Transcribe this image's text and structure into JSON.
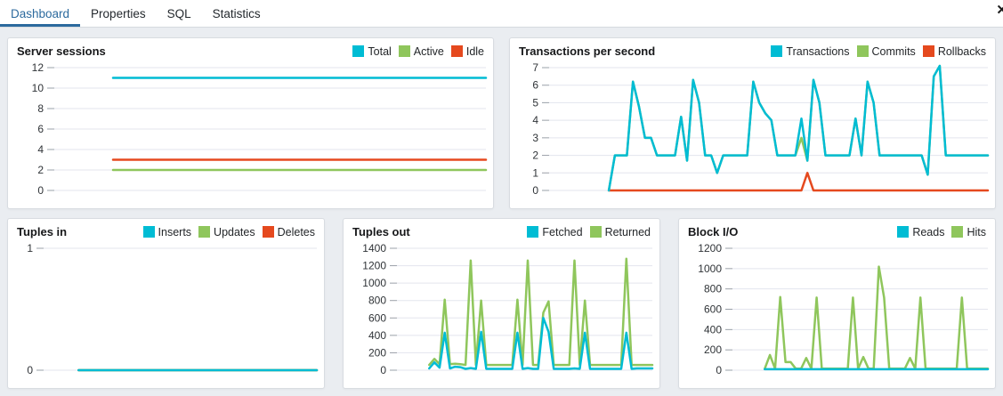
{
  "tabs": {
    "items": [
      {
        "label": "Dashboard",
        "active": true
      },
      {
        "label": "Properties",
        "active": false
      },
      {
        "label": "SQL",
        "active": false
      },
      {
        "label": "Statistics",
        "active": false
      }
    ],
    "close_label": "✕"
  },
  "colors": {
    "cyan": "#00BCD4",
    "green": "#8FC65C",
    "red": "#E5491E",
    "tab_active": "#2C6A9E",
    "gridline": "#e3e5ee",
    "tick": "#9aa0a8",
    "tick_text": "#2f3337"
  },
  "chart_data": [
    {
      "type": "line",
      "title": "Server sessions",
      "ticks": [
        12,
        10,
        8,
        6,
        4,
        2,
        0
      ],
      "ylim": [
        0,
        12
      ],
      "grid": true,
      "legend_position": "top-right",
      "label_width": 30,
      "series": [
        {
          "name": "Total",
          "color_key": "cyan",
          "const": 11,
          "n": 49
        },
        {
          "name": "Active",
          "color_key": "green",
          "const": 2,
          "n": 49
        },
        {
          "name": "Idle",
          "color_key": "red",
          "const": 3,
          "n": 49
        }
      ]
    },
    {
      "type": "line",
      "title": "Transactions per second",
      "ticks": [
        7,
        6,
        5,
        4,
        3,
        2,
        1,
        0
      ],
      "ylim": [
        0,
        7
      ],
      "grid": true,
      "legend_position": "top-right",
      "label_width": 22,
      "series": [
        {
          "name": "Transactions",
          "color_key": "cyan",
          "values": [
            0,
            2,
            2,
            2,
            6.2,
            4.8,
            3,
            3,
            2,
            2,
            2,
            2,
            4.2,
            1.7,
            6.3,
            5,
            2,
            2,
            1,
            2,
            2,
            2,
            2,
            2,
            6.2,
            5,
            4.4,
            4,
            2,
            2,
            2,
            2,
            4.1,
            1.7,
            6.3,
            5,
            2,
            2,
            2,
            2,
            2,
            4.1,
            2,
            6.2,
            5,
            2,
            2,
            2,
            2,
            2,
            2,
            2,
            2,
            0.9,
            6.5,
            7.1,
            2,
            2,
            2,
            2,
            2,
            2,
            2,
            2
          ]
        },
        {
          "name": "Commits",
          "color_key": "green",
          "values": [
            0,
            2,
            2,
            2,
            6.2,
            4.8,
            3,
            3,
            2,
            2,
            2,
            2,
            4.2,
            1.7,
            6.3,
            5,
            2,
            2,
            1,
            2,
            2,
            2,
            2,
            2,
            6.2,
            5,
            4.4,
            4,
            2,
            2,
            2,
            2,
            3,
            1.7,
            6.3,
            5,
            2,
            2,
            2,
            2,
            2,
            4.1,
            2,
            6.2,
            5,
            2,
            2,
            2,
            2,
            2,
            2,
            2,
            2,
            0.9,
            6.5,
            7.1,
            2,
            2,
            2,
            2,
            2,
            2,
            2,
            2
          ]
        },
        {
          "name": "Rollbacks",
          "color_key": "red",
          "values": [
            0,
            0,
            0,
            0,
            0,
            0,
            0,
            0,
            0,
            0,
            0,
            0,
            0,
            0,
            0,
            0,
            0,
            0,
            0,
            0,
            0,
            0,
            0,
            0,
            0,
            0,
            0,
            0,
            0,
            0,
            0,
            0,
            0,
            1,
            0,
            0,
            0,
            0,
            0,
            0,
            0,
            0,
            0,
            0,
            0,
            0,
            0,
            0,
            0,
            0,
            0,
            0,
            0,
            0,
            0,
            0,
            0,
            0,
            0,
            0,
            0,
            0,
            0,
            0
          ]
        }
      ]
    },
    {
      "type": "line",
      "title": "Tuples in",
      "ticks": [
        1,
        0
      ],
      "ylim": [
        0,
        1
      ],
      "grid": true,
      "legend_position": "top-right",
      "label_width": 18,
      "series": [
        {
          "name": "Inserts",
          "color_key": "cyan",
          "const": 0,
          "n": 50
        },
        {
          "name": "Updates",
          "color_key": "green",
          "const": 0,
          "n": 50
        },
        {
          "name": "Deletes",
          "color_key": "red",
          "const": 0,
          "n": 50
        }
      ]
    },
    {
      "type": "line",
      "title": "Tuples out",
      "ticks": [
        1400,
        1200,
        1000,
        800,
        600,
        400,
        200,
        0
      ],
      "ylim": [
        0,
        1400
      ],
      "grid": true,
      "legend_position": "top-right",
      "label_width": 38,
      "series": [
        {
          "name": "Fetched",
          "color_key": "cyan",
          "values": [
            20,
            90,
            30,
            430,
            20,
            40,
            35,
            15,
            25,
            15,
            440,
            15,
            15,
            15,
            15,
            15,
            15,
            430,
            15,
            25,
            15,
            15,
            600,
            440,
            15,
            15,
            15,
            15,
            20,
            15,
            430,
            15,
            15,
            15,
            15,
            15,
            15,
            15,
            430,
            15,
            20,
            20,
            20,
            20
          ]
        },
        {
          "name": "Returned",
          "color_key": "green",
          "values": [
            60,
            130,
            70,
            810,
            70,
            75,
            70,
            60,
            1260,
            60,
            800,
            60,
            60,
            60,
            60,
            60,
            60,
            810,
            60,
            1260,
            60,
            60,
            660,
            790,
            60,
            60,
            60,
            60,
            1260,
            60,
            800,
            60,
            60,
            60,
            60,
            60,
            60,
            60,
            1280,
            60,
            60,
            60,
            60,
            60
          ]
        }
      ]
    },
    {
      "type": "line",
      "title": "Block I/O",
      "ticks": [
        1200,
        1000,
        800,
        600,
        400,
        200,
        0
      ],
      "ylim": [
        0,
        1200
      ],
      "grid": true,
      "legend_position": "top-right",
      "label_width": 38,
      "series": [
        {
          "name": "Reads",
          "color_key": "cyan",
          "const": 10,
          "n": 44
        },
        {
          "name": "Hits",
          "color_key": "green",
          "values": [
            15,
            150,
            15,
            720,
            80,
            80,
            15,
            15,
            120,
            15,
            715,
            15,
            15,
            15,
            15,
            15,
            15,
            715,
            15,
            130,
            15,
            15,
            1020,
            715,
            15,
            15,
            15,
            15,
            120,
            15,
            715,
            15,
            15,
            15,
            15,
            15,
            15,
            15,
            715,
            15,
            15,
            15,
            15,
            15
          ]
        }
      ]
    }
  ]
}
